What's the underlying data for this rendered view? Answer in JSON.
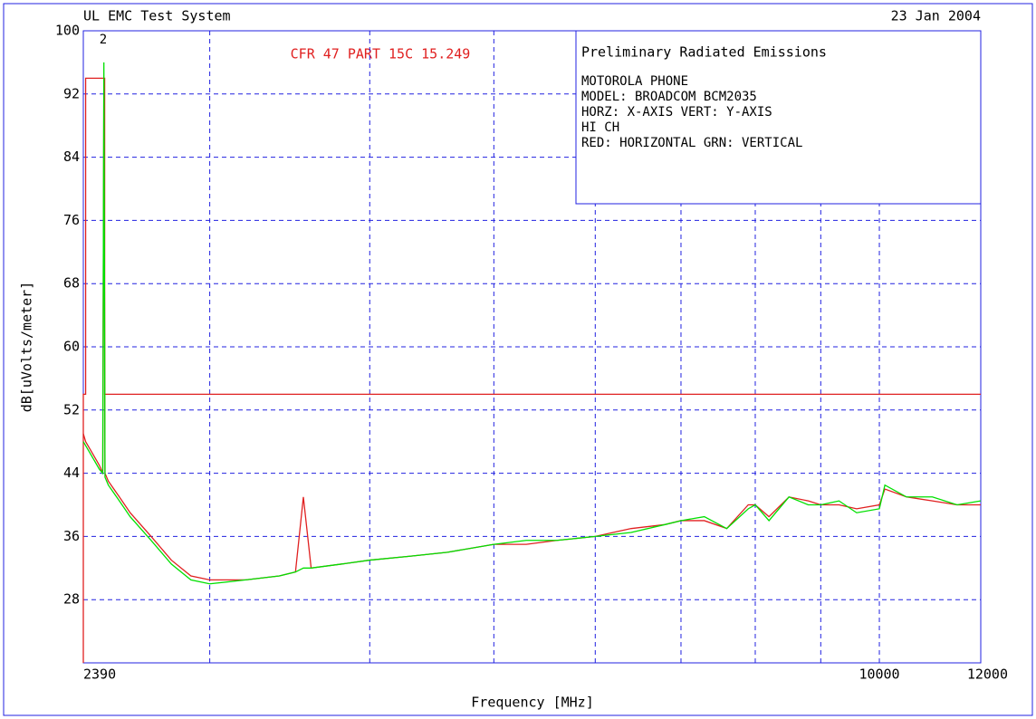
{
  "chart_data": {
    "type": "line",
    "title": "UL EMC Test System",
    "date": "23 Jan 2004",
    "annotation": "CFR 47 PART 15C 15.249",
    "marker_label": "2",
    "info_box": {
      "title": "Preliminary Radiated Emissions",
      "lines": [
        "MOTOROLA PHONE",
        "MODEL: BROADCOM BCM2035",
        "HORZ: X-AXIS  VERT: Y-AXIS",
        "HI CH",
        "RED: HORIZONTAL  GRN: VERTICAL"
      ]
    },
    "x_label": "Frequency [MHz]",
    "y_label": "dB[uVolts/meter]",
    "xlog": true,
    "xlim": [
      2390,
      12000
    ],
    "xticks": [
      2390,
      10000,
      12000
    ],
    "xgrid": [
      3000,
      4000,
      5000,
      6000,
      7000,
      8000,
      9000,
      10000
    ],
    "ylim": [
      20,
      100
    ],
    "yticks": [
      28,
      36,
      44,
      52,
      60,
      68,
      76,
      84,
      92,
      100
    ],
    "grid": true,
    "x": [
      2390,
      2400,
      2420,
      2440,
      2460,
      2475,
      2480,
      2485,
      2500,
      2550,
      2600,
      2700,
      2800,
      2900,
      3000,
      3200,
      3400,
      3500,
      3550,
      3600,
      3800,
      4000,
      4300,
      4600,
      5000,
      5300,
      5600,
      6000,
      6400,
      6800,
      7000,
      7300,
      7600,
      7900,
      8000,
      8200,
      8500,
      8800,
      9000,
      9300,
      9600,
      10000,
      10100,
      10500,
      11000,
      11500,
      12000
    ],
    "series": [
      {
        "color": "#e02020",
        "values": [
          49,
          48,
          47,
          46,
          45,
          44,
          94,
          44,
          43,
          41,
          39,
          36,
          33,
          31,
          30.5,
          30.5,
          31,
          31.5,
          41,
          32,
          32.5,
          33,
          33.5,
          34,
          35,
          35,
          35.5,
          36,
          37,
          37.5,
          38,
          38,
          37,
          40,
          40,
          38.5,
          41,
          40.5,
          40,
          40,
          39.5,
          40,
          42,
          41,
          40.5,
          40,
          40
        ]
      },
      {
        "color": "#00e000",
        "values": [
          48,
          47.5,
          46.5,
          45.5,
          44.5,
          44,
          96,
          43.5,
          42.5,
          40.5,
          38.5,
          35.5,
          32.5,
          30.5,
          30,
          30.5,
          31,
          31.5,
          32,
          32,
          32.5,
          33,
          33.5,
          34,
          35,
          35.5,
          35.5,
          36,
          36.5,
          37.5,
          38,
          38.5,
          37,
          39.5,
          40,
          38,
          41,
          40,
          40,
          40.5,
          39,
          39.5,
          42.5,
          41,
          41,
          40,
          40.5
        ]
      },
      {
        "color": "#e02020",
        "x": [
          2390,
          2390,
          2400,
          2400,
          2483.5,
          2483.5,
          12000
        ],
        "values": [
          20,
          54,
          54,
          94,
          94,
          54,
          54
        ]
      }
    ]
  }
}
